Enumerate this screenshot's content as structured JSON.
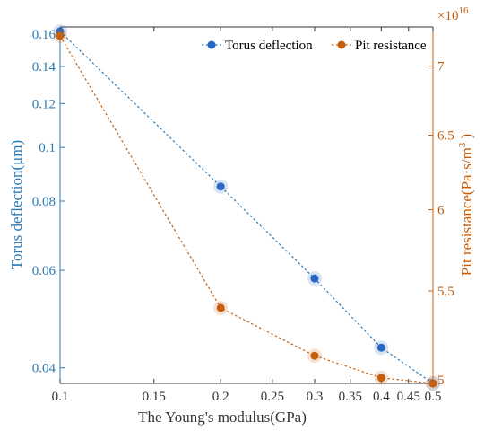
{
  "chart_data": {
    "type": "line",
    "title": "",
    "xlabel": "The Young's modulus(GPa)",
    "x_scale": "log",
    "xlim": [
      0.1,
      0.5
    ],
    "x_ticks": [
      0.1,
      0.15,
      0.2,
      0.25,
      0.3,
      0.35,
      0.4,
      0.45,
      0.5
    ],
    "x_tick_labels": [
      "0.1",
      "0.15",
      "0.2",
      "0.25",
      "0.3",
      "0.35",
      "0.4",
      "0.45",
      "0.5"
    ],
    "y_left": {
      "label_prefix": "Torus deflection(",
      "label_unit": "μm",
      "label_suffix": ")",
      "scale": "log",
      "lim": [
        0.0375,
        0.165
      ],
      "ticks": [
        0.04,
        0.06,
        0.08,
        0.1,
        0.12,
        0.14,
        0.16
      ],
      "tick_labels": [
        "0.04",
        "0.06",
        "0.08",
        "0.1",
        "0.12",
        "0.14",
        "0.16"
      ],
      "color": "#2d7bb6"
    },
    "y_right": {
      "label_prefix": "Pit resistance(Pa·s/m",
      "label_exp": "3",
      "label_suffix": " )",
      "scale": "log",
      "lim": [
        4.98,
        7.3
      ],
      "ticks": [
        5,
        5.5,
        6,
        6.5,
        7
      ],
      "tick_labels": [
        "5",
        "5.5",
        "6",
        "6.5",
        "7"
      ],
      "multiplier_base": "×10",
      "multiplier_exp": "16",
      "color": "#c55f0e"
    },
    "x": [
      0.1,
      0.2,
      0.3,
      0.4,
      0.5
    ],
    "series": [
      {
        "name": "Torus deflection",
        "axis": "left",
        "values": [
          0.162,
          0.085,
          0.058,
          0.0435,
          0.0375
        ],
        "color": "#2868c4",
        "line_color": "#2d7bb6",
        "line_style": "dotted"
      },
      {
        "name": "Pit resistance",
        "axis": "right",
        "values": [
          7.23,
          5.4,
          5.13,
          5.01,
          4.98
        ],
        "color": "#c55f0e",
        "line_color": "#c55f0e",
        "line_style": "dotted"
      }
    ],
    "legend": {
      "position": "top-right"
    },
    "grid": false
  }
}
